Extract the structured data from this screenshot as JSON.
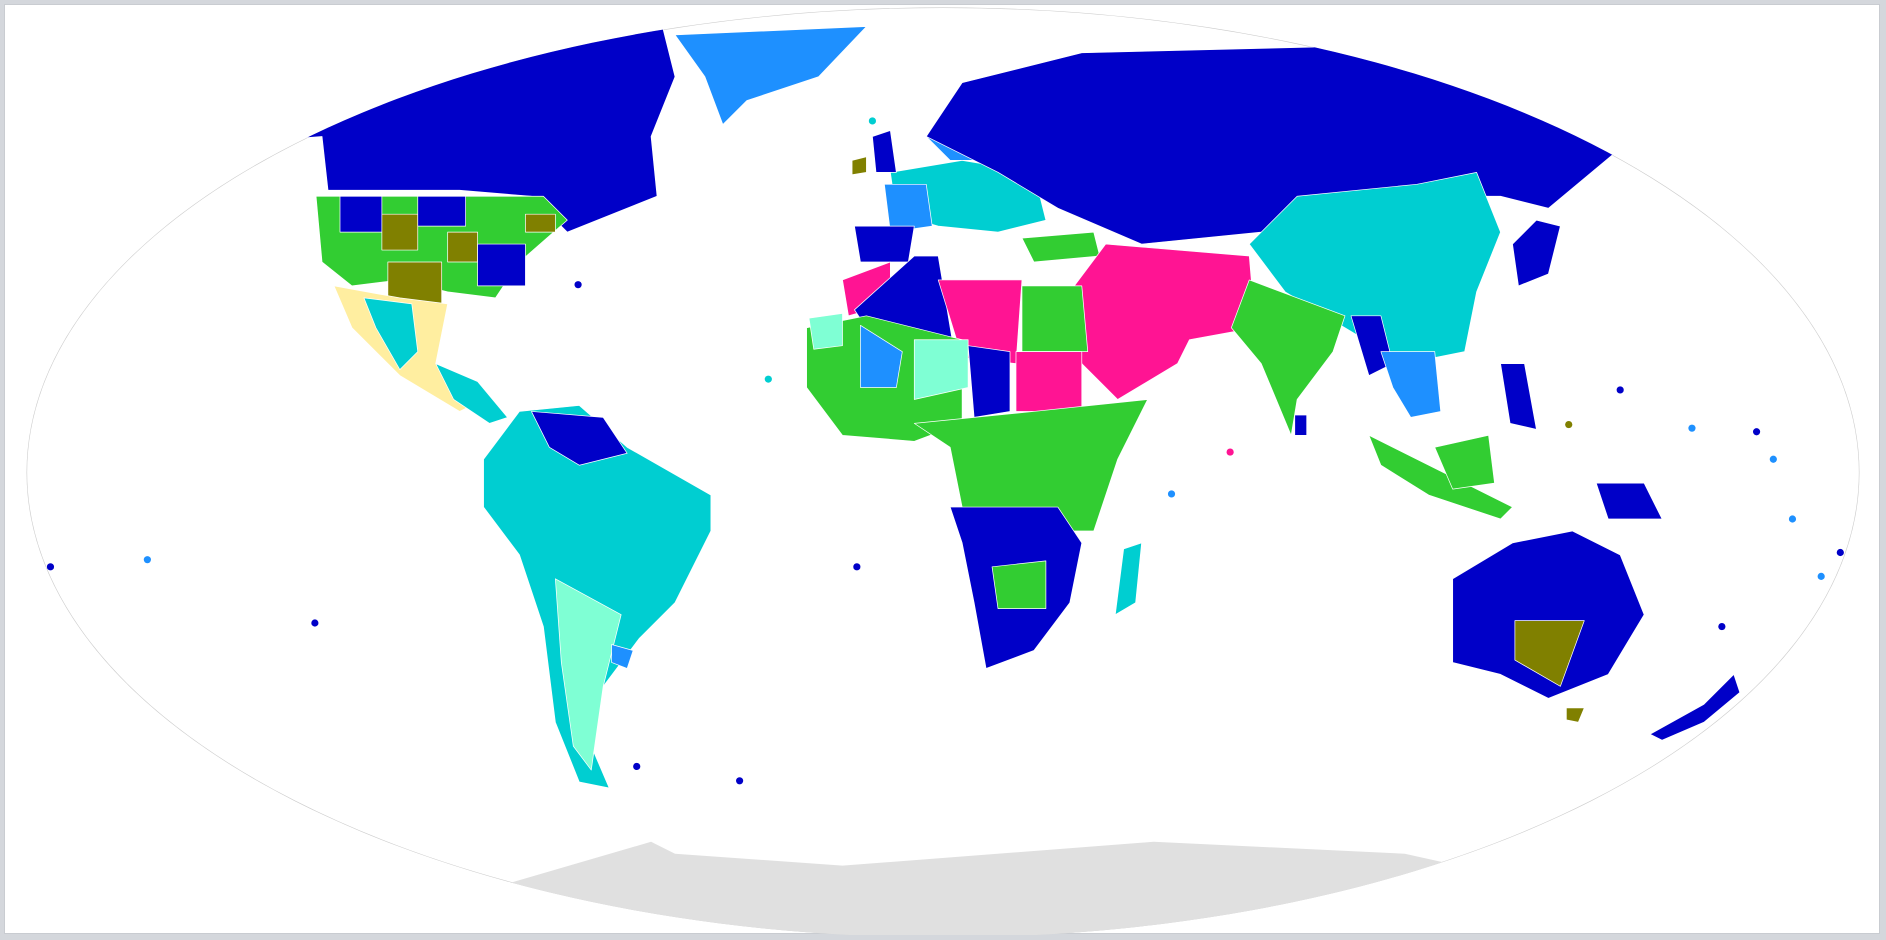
{
  "map": {
    "projection": "robinson",
    "colors": {
      "dark_blue": "#0000c8",
      "light_blue": "#1e90ff",
      "cyan": "#00ced1",
      "green": "#32cd32",
      "magenta": "#ff1493",
      "olive": "#808000",
      "aquamarine": "#7fffd4",
      "pale_yellow": "#ffeea0",
      "salmon": "#fa8072",
      "antarctica_gray": "#e0e0e0",
      "outline": "#cccccc"
    }
  }
}
